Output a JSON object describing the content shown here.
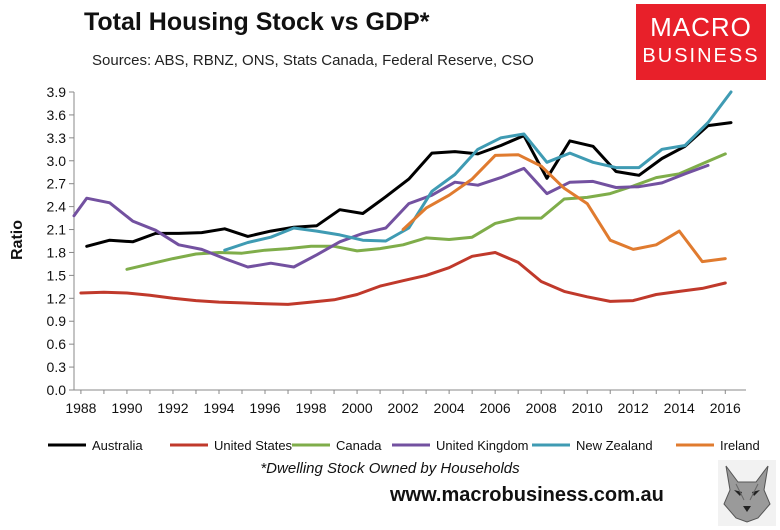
{
  "header": {
    "title": "Total Housing Stock vs GDP*",
    "subtitle": "Sources: ABS, RBNZ, ONS, Stats Canada, Federal Reserve, CSO"
  },
  "logo": {
    "line1": "MACRO",
    "line2": "BUSINESS",
    "color": "#e8202a"
  },
  "footer": {
    "footnote": "*Dwelling Stock Owned by Households",
    "website": "www.macrobusiness.com.au"
  },
  "chart_data": {
    "type": "line",
    "title": "Total Housing Stock vs GDP*",
    "ylabel": "Ratio",
    "xlabel": "",
    "xlim": [
      1987.7,
      2016.9
    ],
    "ylim": [
      0,
      3.9
    ],
    "x_ticks": [
      1988,
      1990,
      1992,
      1994,
      1996,
      1998,
      2000,
      2002,
      2004,
      2006,
      2008,
      2010,
      2012,
      2014,
      2016
    ],
    "y_ticks": [
      "0.0",
      "0.3",
      "0.6",
      "0.9",
      "1.2",
      "1.5",
      "1.8",
      "2.1",
      "2.4",
      "2.7",
      "3.0",
      "3.3",
      "3.6",
      "3.9"
    ],
    "grid": false,
    "legend": "bottom",
    "series": [
      {
        "name": "Australia",
        "color": "#000000",
        "x": [
          1988.25,
          1989.25,
          1990.25,
          1991.25,
          1992.25,
          1993.25,
          1994.25,
          1995.25,
          1996.25,
          1997.25,
          1998.25,
          1999.25,
          2000.25,
          2001.25,
          2002.25,
          2003.25,
          2004.25,
          2005.25,
          2006.25,
          2007.25,
          2008.25,
          2009.25,
          2010.25,
          2011.25,
          2012.25,
          2013.25,
          2014.25,
          2015.25,
          2016.25
        ],
        "values": [
          1.88,
          1.96,
          1.94,
          2.05,
          2.05,
          2.06,
          2.11,
          2.01,
          2.08,
          2.13,
          2.15,
          2.36,
          2.31,
          2.53,
          2.76,
          3.1,
          3.12,
          3.09,
          3.2,
          3.33,
          2.77,
          3.26,
          3.19,
          2.86,
          2.81,
          3.03,
          3.19,
          3.46,
          3.5
        ]
      },
      {
        "name": "United States",
        "color": "#c0392b",
        "x": [
          1988,
          1989,
          1990,
          1991,
          1992,
          1993,
          1994,
          1995,
          1996,
          1997,
          1998,
          1999,
          2000,
          2001,
          2002,
          2003,
          2004,
          2005,
          2006,
          2007,
          2008,
          2009,
          2010,
          2011,
          2012,
          2013,
          2014,
          2015,
          2016
        ],
        "values": [
          1.27,
          1.28,
          1.27,
          1.24,
          1.2,
          1.17,
          1.15,
          1.14,
          1.13,
          1.12,
          1.15,
          1.18,
          1.25,
          1.36,
          1.43,
          1.5,
          1.6,
          1.75,
          1.8,
          1.67,
          1.42,
          1.29,
          1.22,
          1.16,
          1.17,
          1.25,
          1.29,
          1.33,
          1.4
        ]
      },
      {
        "name": "Canada",
        "color": "#7fad4a",
        "x": [
          1990,
          1991,
          1992,
          1993,
          1994,
          1995,
          1996,
          1997,
          1998,
          1999,
          2000,
          2001,
          2002,
          2003,
          2004,
          2005,
          2006,
          2007,
          2008,
          2009,
          2010,
          2011,
          2012,
          2013,
          2014,
          2015,
          2016
        ],
        "values": [
          1.58,
          1.65,
          1.72,
          1.78,
          1.8,
          1.79,
          1.83,
          1.85,
          1.88,
          1.88,
          1.82,
          1.85,
          1.9,
          1.99,
          1.97,
          2.0,
          2.18,
          2.25,
          2.25,
          2.5,
          2.52,
          2.57,
          2.67,
          2.78,
          2.83,
          2.96,
          3.09
        ]
      },
      {
        "name": "United Kingdom",
        "color": "#7351a0",
        "x": [
          1987.7,
          1988.25,
          1989.25,
          1990.25,
          1991.25,
          1992.25,
          1993.25,
          1994.25,
          1995.25,
          1996.25,
          1997.25,
          1998.25,
          1999.25,
          2000.25,
          2001.25,
          2002.25,
          2003.25,
          2004.25,
          2005.25,
          2006.25,
          2007.25,
          2008.25,
          2009.25,
          2010.25,
          2011.25,
          2012.25,
          2013.25,
          2014.25,
          2015.25
        ],
        "values": [
          2.28,
          2.51,
          2.45,
          2.21,
          2.09,
          1.9,
          1.84,
          1.72,
          1.61,
          1.66,
          1.61,
          1.77,
          1.94,
          2.05,
          2.12,
          2.44,
          2.55,
          2.72,
          2.68,
          2.78,
          2.9,
          2.57,
          2.72,
          2.73,
          2.65,
          2.66,
          2.71,
          2.83,
          2.94
        ]
      },
      {
        "name": "New Zealand",
        "color": "#3f9bb3",
        "x": [
          1994.25,
          1995.25,
          1996.25,
          1997.25,
          1998.25,
          1999.25,
          2000.25,
          2001.25,
          2002.25,
          2003.25,
          2004.25,
          2005.25,
          2006.25,
          2007.25,
          2008.25,
          2009.25,
          2010.25,
          2011.25,
          2012.25,
          2013.25,
          2014.25,
          2015.25,
          2016.25
        ],
        "values": [
          1.83,
          1.93,
          2.0,
          2.12,
          2.08,
          2.03,
          1.96,
          1.95,
          2.12,
          2.6,
          2.82,
          3.15,
          3.3,
          3.35,
          2.98,
          3.1,
          2.98,
          2.91,
          2.91,
          3.15,
          3.2,
          3.5,
          3.9
        ]
      },
      {
        "name": "Ireland",
        "color": "#e07b2f",
        "x": [
          2002,
          2003,
          2004,
          2005,
          2006,
          2007,
          2008,
          2009,
          2010,
          2011,
          2012,
          2013,
          2014,
          2015,
          2016
        ],
        "values": [
          2.1,
          2.38,
          2.55,
          2.76,
          3.07,
          3.08,
          2.93,
          2.64,
          2.44,
          1.96,
          1.84,
          1.9,
          2.08,
          1.68,
          1.72
        ]
      }
    ]
  }
}
